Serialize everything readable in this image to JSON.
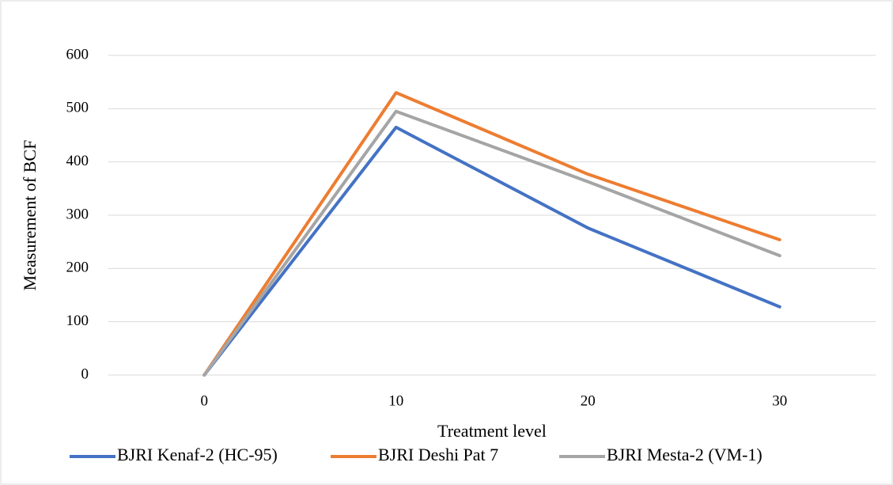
{
  "chart_data": {
    "type": "line",
    "categories": [
      "0",
      "10",
      "20",
      "30"
    ],
    "series": [
      {
        "name": "BJRI Kenaf-2 (HC-95)",
        "color": "#4472c4",
        "values": [
          0,
          465,
          276,
          128
        ]
      },
      {
        "name": "BJRI Deshi Pat 7",
        "color": "#ed7d31",
        "values": [
          0,
          530,
          377,
          254
        ]
      },
      {
        "name": "BJRI Mesta-2 (VM-1)",
        "color": "#a5a5a5",
        "values": [
          0,
          495,
          363,
          224
        ]
      }
    ],
    "ylim": [
      0,
      600
    ],
    "yticks": [
      0,
      100,
      200,
      300,
      400,
      500,
      600
    ],
    "grid": true,
    "xlabel": "Treatment level",
    "ylabel": "Measurement of  BCF",
    "legend": "bottom"
  }
}
